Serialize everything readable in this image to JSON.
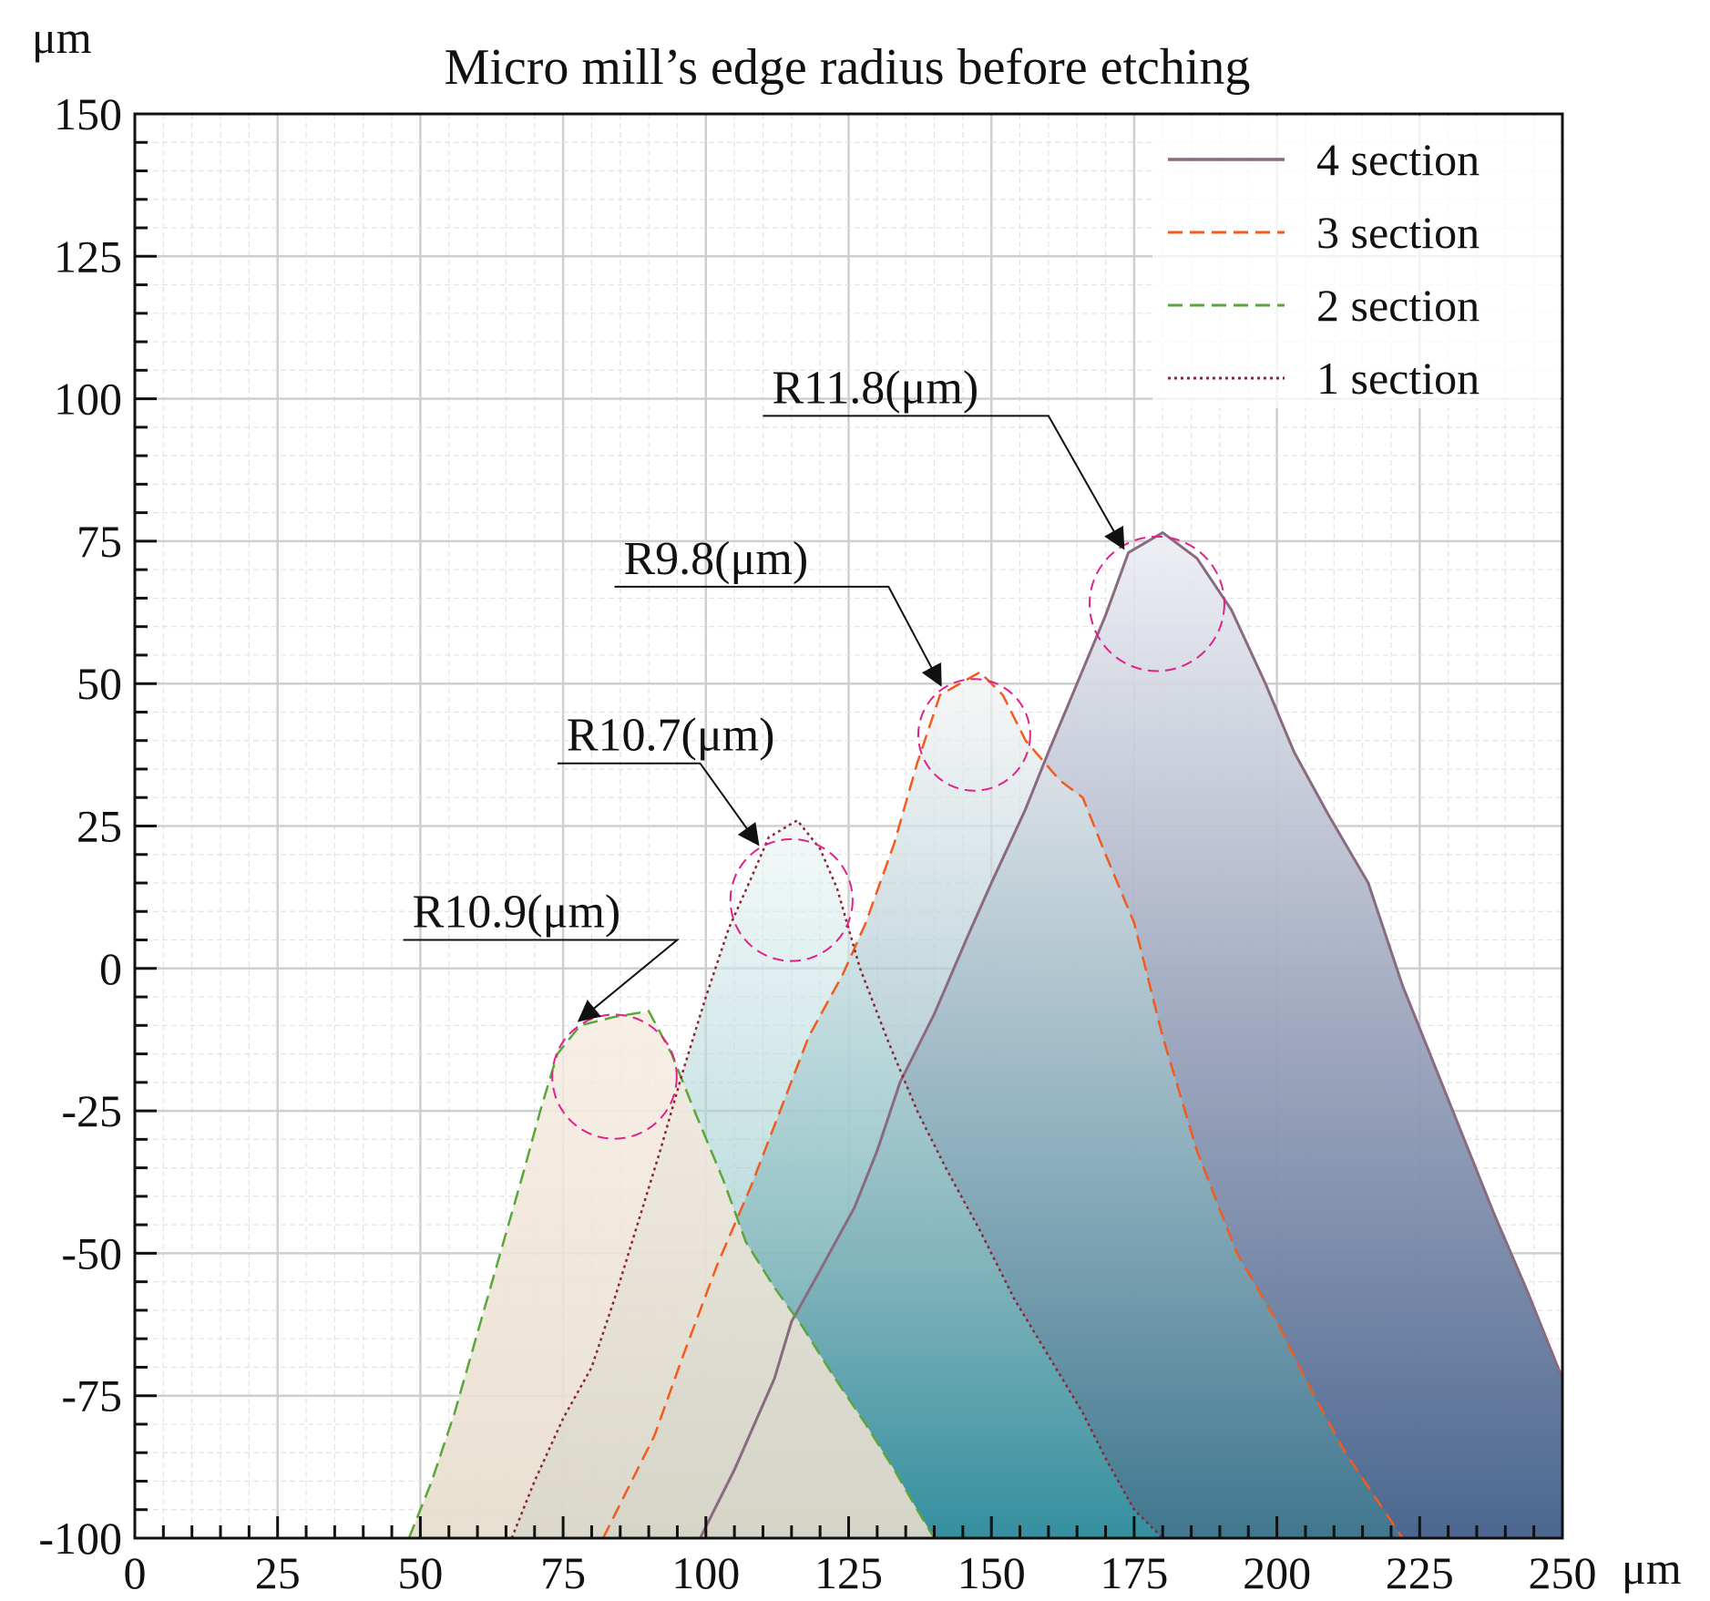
{
  "chart_data": {
    "type": "area",
    "title": "Micro mill’s edge radius before etching",
    "xlabel": "μm",
    "ylabel": "μm",
    "xlim": [
      0,
      250
    ],
    "ylim": [
      -100,
      150
    ],
    "x_ticks": [
      0,
      25,
      50,
      75,
      100,
      125,
      150,
      175,
      200,
      225,
      250
    ],
    "y_ticks": [
      -100,
      -75,
      -50,
      -25,
      0,
      25,
      50,
      75,
      100,
      125,
      150
    ],
    "grid": true,
    "legend_position": "top-right",
    "series": [
      {
        "name": "4 section",
        "style": "solid",
        "color": "#8a6a80",
        "points": [
          [
            99,
            -100
          ],
          [
            105,
            -88
          ],
          [
            112,
            -72
          ],
          [
            115,
            -62
          ],
          [
            120,
            -53
          ],
          [
            126,
            -42
          ],
          [
            130,
            -32
          ],
          [
            134,
            -20
          ],
          [
            140,
            -8
          ],
          [
            146,
            6
          ],
          [
            150,
            15
          ],
          [
            156,
            28
          ],
          [
            160,
            38
          ],
          [
            165,
            50
          ],
          [
            170,
            62
          ],
          [
            174,
            73
          ],
          [
            180,
            76.5
          ],
          [
            186,
            72
          ],
          [
            192,
            63
          ],
          [
            198,
            50
          ],
          [
            203,
            38
          ],
          [
            209,
            27
          ],
          [
            216,
            15
          ],
          [
            222,
            -3
          ],
          [
            230,
            -23
          ],
          [
            238,
            -43
          ],
          [
            244,
            -57
          ],
          [
            250,
            -72
          ]
        ]
      },
      {
        "name": "3 section",
        "style": "dashed",
        "color": "#f25a1e",
        "points": [
          [
            82,
            -100
          ],
          [
            86,
            -92
          ],
          [
            91,
            -82
          ],
          [
            96,
            -68
          ],
          [
            102,
            -52
          ],
          [
            108,
            -38
          ],
          [
            113,
            -25
          ],
          [
            118,
            -12
          ],
          [
            124,
            -1
          ],
          [
            128,
            8
          ],
          [
            133,
            22
          ],
          [
            137,
            36
          ],
          [
            141,
            48
          ],
          [
            148,
            52
          ],
          [
            152,
            48
          ],
          [
            156,
            40
          ],
          [
            162,
            33
          ],
          [
            166,
            30
          ],
          [
            170,
            20
          ],
          [
            175,
            8
          ],
          [
            180,
            -12
          ],
          [
            186,
            -32
          ],
          [
            193,
            -50
          ],
          [
            200,
            -62
          ],
          [
            206,
            -74
          ],
          [
            212,
            -85
          ],
          [
            218,
            -94
          ],
          [
            222,
            -100
          ]
        ]
      },
      {
        "name": "2 section",
        "style": "dashed",
        "color": "#5aa63a",
        "points": [
          [
            48,
            -100
          ],
          [
            52,
            -90
          ],
          [
            56,
            -78
          ],
          [
            60,
            -64
          ],
          [
            64,
            -50
          ],
          [
            68,
            -36
          ],
          [
            71,
            -25
          ],
          [
            74,
            -15
          ],
          [
            78,
            -10
          ],
          [
            84,
            -8.5
          ],
          [
            90,
            -7.5
          ],
          [
            94,
            -15
          ],
          [
            98,
            -25
          ],
          [
            103,
            -37
          ],
          [
            107,
            -48
          ],
          [
            112,
            -56
          ],
          [
            117,
            -63
          ],
          [
            122,
            -71
          ],
          [
            128,
            -80
          ],
          [
            133,
            -88
          ],
          [
            137,
            -95
          ],
          [
            140,
            -100
          ]
        ]
      },
      {
        "name": "1 section",
        "style": "dotted",
        "color": "#8a2536",
        "points": [
          [
            66,
            -100
          ],
          [
            70,
            -90
          ],
          [
            75,
            -79
          ],
          [
            80,
            -70
          ],
          [
            84,
            -58
          ],
          [
            88,
            -45
          ],
          [
            92,
            -32
          ],
          [
            96,
            -18
          ],
          [
            100,
            -5
          ],
          [
            104,
            7
          ],
          [
            108,
            16
          ],
          [
            111,
            23
          ],
          [
            116,
            26
          ],
          [
            120,
            21
          ],
          [
            123,
            14
          ],
          [
            127,
            0
          ],
          [
            132,
            -13
          ],
          [
            137,
            -25
          ],
          [
            142,
            -35
          ],
          [
            148,
            -46
          ],
          [
            154,
            -58
          ],
          [
            160,
            -68
          ],
          [
            166,
            -78
          ],
          [
            170,
            -86
          ],
          [
            175,
            -95
          ],
          [
            180,
            -100
          ]
        ]
      }
    ],
    "circles": [
      {
        "cx": 84,
        "cy": -19,
        "r": 10.9
      },
      {
        "cx": 115,
        "cy": 12,
        "r": 10.7
      },
      {
        "cx": 147,
        "cy": 41,
        "r": 9.8
      },
      {
        "cx": 179,
        "cy": 64,
        "r": 11.8
      }
    ],
    "annotations": [
      {
        "text": "R10.9(μm)",
        "text_x": 47,
        "text_y": 5,
        "tip_x": 78,
        "tip_y": -9,
        "elbow_x": 95
      },
      {
        "text": "R10.7(μm)",
        "text_x": 74,
        "text_y": 36,
        "tip_x": 109,
        "tip_y": 22,
        "elbow_x": 99
      },
      {
        "text": "R9.8(μm)",
        "text_x": 84,
        "text_y": 67,
        "tip_x": 141,
        "tip_y": 50,
        "elbow_x": 132
      },
      {
        "text": "R11.8(μm)",
        "text_x": 110,
        "text_y": 97,
        "tip_x": 173,
        "tip_y": 74,
        "elbow_x": 160
      }
    ]
  }
}
